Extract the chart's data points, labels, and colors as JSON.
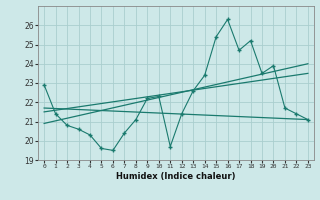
{
  "title": "",
  "xlabel": "Humidex (Indice chaleur)",
  "xlim": [
    -0.5,
    23.5
  ],
  "ylim": [
    19,
    27
  ],
  "yticks": [
    19,
    20,
    21,
    22,
    23,
    24,
    25,
    26
  ],
  "xticks": [
    0,
    1,
    2,
    3,
    4,
    5,
    6,
    7,
    8,
    9,
    10,
    11,
    12,
    13,
    14,
    15,
    16,
    17,
    18,
    19,
    20,
    21,
    22,
    23
  ],
  "background_color": "#cde8e8",
  "grid_color": "#aacece",
  "line_color": "#1a7a6e",
  "line_data": [
    22.9,
    21.4,
    20.8,
    20.6,
    20.3,
    19.6,
    19.5,
    20.4,
    21.1,
    22.2,
    22.3,
    19.7,
    21.4,
    22.6,
    23.4,
    25.4,
    26.3,
    24.7,
    25.2,
    23.5,
    23.9,
    21.7,
    21.4,
    21.1
  ],
  "trend1_x": [
    0,
    23
  ],
  "trend1_y": [
    21.5,
    23.5
  ],
  "trend2_x": [
    0,
    23
  ],
  "trend2_y": [
    21.7,
    21.1
  ],
  "trend3_x": [
    0,
    23
  ],
  "trend3_y": [
    20.9,
    24.0
  ]
}
